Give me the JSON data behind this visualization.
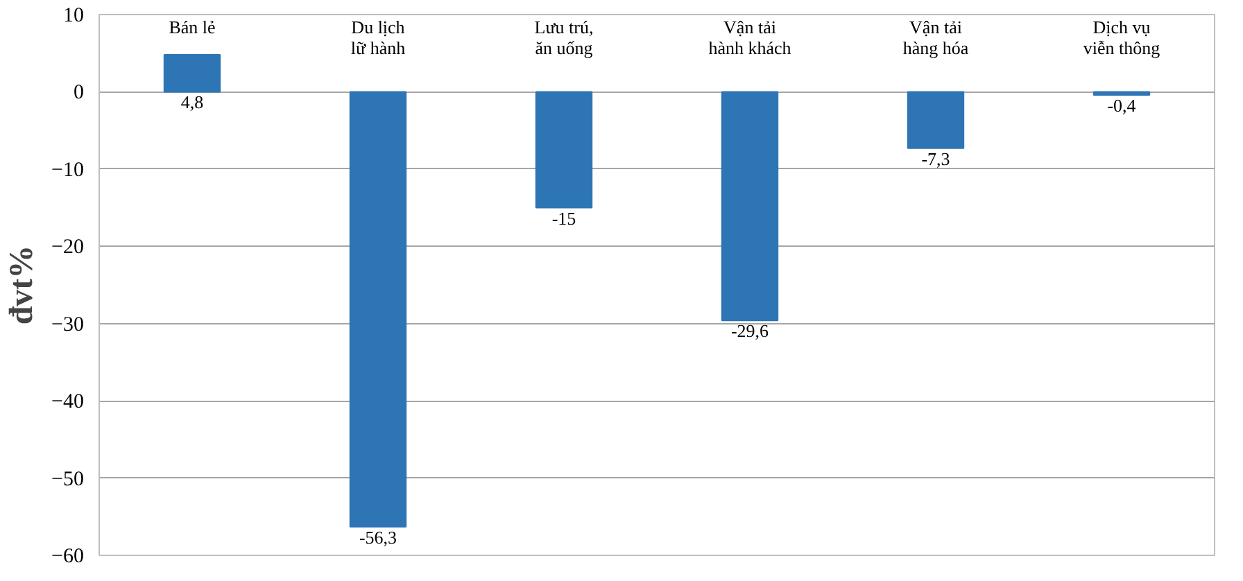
{
  "chart_data": {
    "type": "bar",
    "ylabel": "đvt%",
    "categories": [
      "Bán lẻ",
      "Du lịch\nlữ hành",
      "Lưu trú,\năn uống",
      "Vận tải\nhành khách",
      "Vận tải\nhàng hóa",
      "Dịch vụ\nviễn thông"
    ],
    "values": [
      4.8,
      -56.3,
      -15,
      -29.6,
      -7.3,
      -0.4
    ],
    "color": "#2e75b6",
    "ylim": [
      -60,
      10
    ],
    "yticks": [
      -60,
      -50,
      -40,
      -30,
      -20,
      -10,
      0,
      10
    ],
    "grid": "y",
    "data_labels": true,
    "value_labels": [
      "4,8",
      "-56,3",
      "-15",
      "-29,6",
      "-7,3",
      "-0,4"
    ]
  }
}
